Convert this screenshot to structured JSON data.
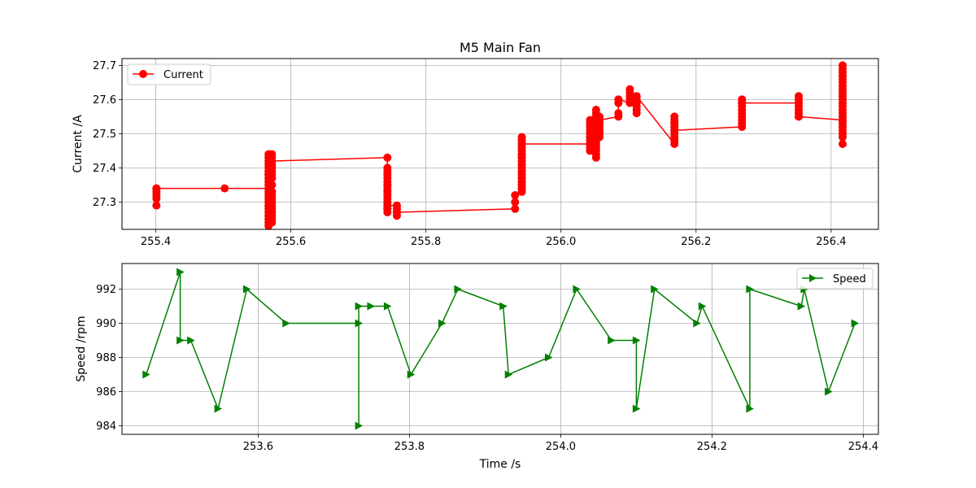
{
  "chart_data": [
    {
      "type": "line",
      "title": "M5 Main Fan",
      "xlabel": "",
      "ylabel": "Current /A",
      "xlim": [
        255.35,
        256.47
      ],
      "ylim": [
        27.22,
        27.72
      ],
      "xticks": [
        255.4,
        255.6,
        255.8,
        256.0,
        256.2,
        256.4
      ],
      "xtick_labels": [
        "255.4",
        "255.6",
        "255.8",
        "256.0",
        "256.2",
        "256.4"
      ],
      "yticks": [
        27.3,
        27.4,
        27.5,
        27.6,
        27.7
      ],
      "ytick_labels": [
        "27.3",
        "27.4",
        "27.5",
        "27.6",
        "27.7"
      ],
      "grid": true,
      "legend_position": "top-left",
      "series": [
        {
          "name": "Current",
          "color": "#ff0000",
          "marker": "circle",
          "x": [
            255.401,
            255.401,
            255.401,
            255.401,
            255.401,
            255.401,
            255.502,
            255.567,
            255.567,
            255.567,
            255.567,
            255.567,
            255.567,
            255.567,
            255.567,
            255.567,
            255.567,
            255.567,
            255.567,
            255.567,
            255.567,
            255.567,
            255.567,
            255.567,
            255.567,
            255.567,
            255.567,
            255.567,
            255.567,
            255.567,
            255.567,
            255.572,
            255.572,
            255.572,
            255.572,
            255.572,
            255.572,
            255.572,
            255.572,
            255.572,
            255.572,
            255.572,
            255.572,
            255.572,
            255.572,
            255.572,
            255.572,
            255.572,
            255.572,
            255.572,
            255.572,
            255.572,
            255.743,
            255.743,
            255.743,
            255.743,
            255.743,
            255.743,
            255.743,
            255.743,
            255.743,
            255.743,
            255.743,
            255.743,
            255.743,
            255.743,
            255.743,
            255.743,
            255.743,
            255.743,
            255.743,
            255.743,
            255.757,
            255.757,
            255.757,
            255.757,
            255.757,
            255.932,
            255.932,
            255.932,
            255.942,
            255.942,
            255.942,
            255.942,
            255.942,
            255.942,
            255.942,
            255.942,
            255.942,
            255.942,
            255.942,
            255.942,
            255.942,
            255.942,
            255.942,
            255.942,
            255.942,
            255.942,
            255.942,
            255.942,
            255.942,
            255.942,
            255.942,
            255.942,
            255.942,
            255.942,
            255.942,
            255.942,
            255.942,
            255.942,
            255.942,
            255.942,
            255.942,
            255.942,
            256.043,
            256.043,
            256.043,
            256.043,
            256.043,
            256.043,
            256.043,
            256.043,
            256.043,
            256.043,
            256.043,
            256.052,
            256.052,
            256.052,
            256.052,
            256.052,
            256.052,
            256.052,
            256.052,
            256.052,
            256.052,
            256.052,
            256.052,
            256.052,
            256.052,
            256.052,
            256.057,
            256.057,
            256.057,
            256.057,
            256.057,
            256.057,
            256.057,
            256.057,
            256.057,
            256.057,
            256.085,
            256.085,
            256.085,
            256.085,
            256.085,
            256.102,
            256.102,
            256.102,
            256.102,
            256.102,
            256.112,
            256.112,
            256.112,
            256.112,
            256.112,
            256.112,
            256.168,
            256.168,
            256.168,
            256.168,
            256.168,
            256.168,
            256.168,
            256.168,
            256.168,
            256.168,
            256.168,
            256.168,
            256.268,
            256.268,
            256.268,
            256.268,
            256.268,
            256.268,
            256.268,
            256.268,
            256.268,
            256.268,
            256.268,
            256.352,
            256.352,
            256.352,
            256.352,
            256.352,
            256.352,
            256.352,
            256.352,
            256.352,
            256.417,
            256.417,
            256.417,
            256.417,
            256.417,
            256.417,
            256.417,
            256.417,
            256.417,
            256.417,
            256.417,
            256.417,
            256.417,
            256.417,
            256.417,
            256.417,
            256.417,
            256.417,
            256.417,
            256.417,
            256.417,
            256.417,
            256.417,
            256.417
          ],
          "y": [
            27.29,
            27.31,
            27.33,
            27.34,
            27.32,
            27.34,
            27.34,
            27.34,
            27.29,
            27.25,
            27.23,
            27.24,
            27.26,
            27.28,
            27.3,
            27.32,
            27.33,
            27.35,
            27.36,
            27.37,
            27.38,
            27.39,
            27.4,
            27.41,
            27.42,
            27.43,
            27.44,
            27.38,
            27.36,
            27.31,
            27.27,
            27.25,
            27.27,
            27.29,
            27.31,
            27.33,
            27.35,
            27.37,
            27.39,
            27.4,
            27.41,
            27.42,
            27.43,
            27.44,
            27.38,
            27.35,
            27.32,
            27.3,
            27.28,
            27.26,
            27.24,
            27.42,
            27.43,
            27.4,
            27.39,
            27.38,
            27.37,
            27.36,
            27.35,
            27.34,
            27.33,
            27.32,
            27.31,
            27.3,
            27.29,
            27.28,
            27.27,
            27.28,
            27.3,
            27.32,
            27.35,
            27.29,
            27.29,
            27.28,
            27.27,
            27.26,
            27.27,
            27.28,
            27.3,
            27.32,
            27.33,
            27.34,
            27.35,
            27.36,
            27.37,
            27.38,
            27.39,
            27.4,
            27.41,
            27.42,
            27.43,
            27.44,
            27.45,
            27.46,
            27.47,
            27.48,
            27.49,
            27.48,
            27.46,
            27.44,
            27.42,
            27.4,
            27.38,
            27.36,
            27.34,
            27.35,
            27.37,
            27.39,
            27.41,
            27.43,
            27.45,
            27.47,
            27.49,
            27.47,
            27.47,
            27.45,
            27.46,
            27.48,
            27.49,
            27.5,
            27.51,
            27.52,
            27.53,
            27.54,
            27.47,
            27.43,
            27.44,
            27.45,
            27.46,
            27.47,
            27.48,
            27.49,
            27.5,
            27.51,
            27.52,
            27.53,
            27.54,
            27.55,
            27.56,
            27.57,
            27.49,
            27.5,
            27.51,
            27.52,
            27.53,
            27.54,
            27.55,
            27.53,
            27.51,
            27.54,
            27.55,
            27.56,
            27.59,
            27.6,
            27.6,
            27.59,
            27.6,
            27.61,
            27.62,
            27.63,
            27.56,
            27.57,
            27.58,
            27.59,
            27.6,
            27.61,
            27.47,
            27.48,
            27.49,
            27.5,
            27.51,
            27.52,
            27.53,
            27.54,
            27.55,
            27.53,
            27.52,
            27.51,
            27.52,
            27.53,
            27.54,
            27.55,
            27.56,
            27.57,
            27.58,
            27.59,
            27.6,
            27.6,
            27.59,
            27.59,
            27.55,
            27.56,
            27.57,
            27.58,
            27.59,
            27.6,
            27.61,
            27.55,
            27.54,
            27.47,
            27.49,
            27.5,
            27.51,
            27.52,
            27.53,
            27.55,
            27.56,
            27.57,
            27.58,
            27.59,
            27.6,
            27.61,
            27.62,
            27.63,
            27.64,
            27.65,
            27.66,
            27.67,
            27.68,
            27.69,
            27.7,
            27.54
          ]
        }
      ]
    },
    {
      "type": "line",
      "title": "",
      "xlabel": "Time /s",
      "ylabel": "Speed /rpm",
      "xlim": [
        253.42,
        254.42
      ],
      "ylim": [
        983.5,
        993.5
      ],
      "xticks": [
        253.6,
        253.8,
        254.0,
        254.2,
        254.4
      ],
      "xtick_labels": [
        "253.6",
        "253.8",
        "254.0",
        "254.2",
        "254.4"
      ],
      "yticks": [
        984,
        986,
        988,
        990,
        992
      ],
      "ytick_labels": [
        "984",
        "986",
        "988",
        "990",
        "992"
      ],
      "grid": true,
      "legend_position": "top-right",
      "series": [
        {
          "name": "Speed",
          "color": "#008000",
          "marker": "triangle-right",
          "x": [
            253.452,
            253.497,
            253.497,
            253.511,
            253.547,
            253.585,
            253.637,
            253.733,
            253.733,
            253.733,
            253.749,
            253.771,
            253.802,
            253.843,
            253.864,
            253.924,
            253.931,
            253.984,
            254.021,
            254.067,
            254.1,
            254.1,
            254.124,
            254.18,
            254.187,
            254.25,
            254.25,
            254.318,
            254.322,
            254.354,
            254.389
          ],
          "y": [
            987,
            993,
            989,
            989,
            985,
            992,
            990,
            990,
            984,
            991,
            991,
            991,
            987,
            990,
            992,
            991,
            987,
            988,
            992,
            989,
            989,
            985,
            992,
            990,
            991,
            985,
            992,
            991,
            992,
            986,
            990
          ]
        }
      ]
    }
  ]
}
